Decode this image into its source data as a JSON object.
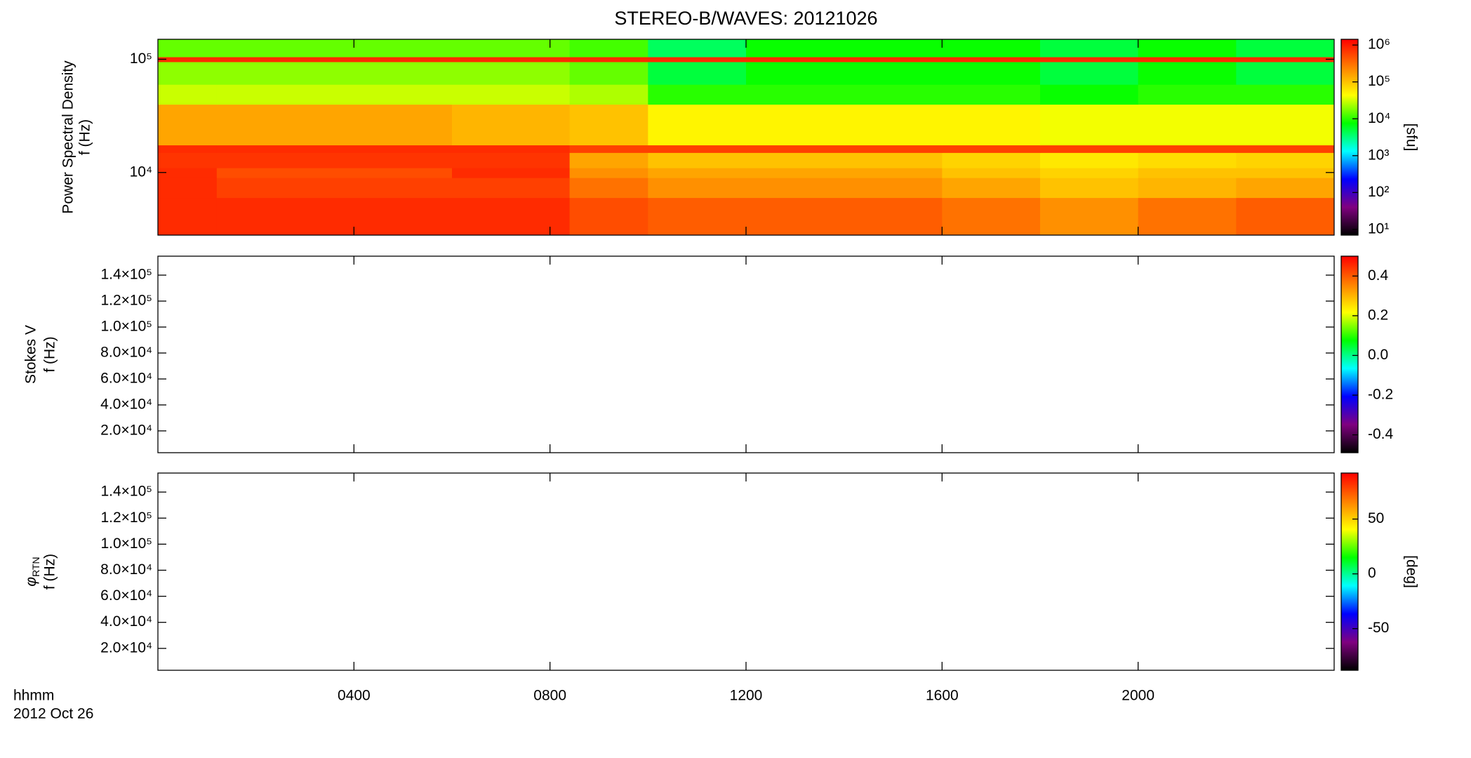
{
  "chart_data": [
    {
      "type": "heatmap",
      "title": "STEREO-B/WAVES: 20121026",
      "ylabel": [
        "Power Spectral Density",
        "f (Hz)"
      ],
      "log_y": true,
      "ylim": [
        2800,
        150000
      ],
      "yticks": [
        {
          "value": 10000,
          "label": "10⁴"
        },
        {
          "value": 100000,
          "label": "10⁵"
        }
      ],
      "x_edges": [
        0,
        1.2,
        6,
        8.4,
        10,
        12,
        14,
        16,
        18,
        20,
        22,
        24
      ],
      "y_edges": [
        2800,
        6000,
        9000,
        11000,
        15000,
        17500,
        40000,
        60000,
        95000,
        105000,
        150000
      ],
      "z": [
        [
          800000,
          800000,
          800000,
          500000,
          400000,
          400000,
          400000,
          300000,
          200000,
          300000,
          400000
        ],
        [
          800000,
          600000,
          600000,
          300000,
          200000,
          200000,
          200000,
          150000,
          100000,
          120000,
          150000
        ],
        [
          800000,
          500000,
          800000,
          200000,
          150000,
          150000,
          150000,
          100000,
          80000,
          100000,
          100000
        ],
        [
          700000,
          700000,
          700000,
          150000,
          100000,
          100000,
          100000,
          80000,
          60000,
          70000,
          80000
        ],
        [
          800000,
          800000,
          800000,
          600000,
          600000,
          600000,
          600000,
          600000,
          600000,
          600000,
          600000
        ],
        [
          150000,
          150000,
          120000,
          100000,
          50000,
          50000,
          50000,
          50000,
          40000,
          40000,
          40000
        ],
        [
          30000,
          30000,
          30000,
          25000,
          10000,
          10000,
          10000,
          10000,
          8000,
          10000,
          10000
        ],
        [
          20000,
          20000,
          20000,
          15000,
          5000,
          8000,
          8000,
          8000,
          5000,
          8000,
          5000
        ],
        [
          800000,
          800000,
          800000,
          800000,
          800000,
          800000,
          800000,
          800000,
          800000,
          800000,
          800000
        ],
        [
          15000,
          15000,
          15000,
          12000,
          4000,
          8000,
          8000,
          8000,
          5000,
          8000,
          5000
        ]
      ],
      "colorbar": {
        "log": true,
        "zlim": [
          7,
          1430000
        ],
        "label": "[sfu]",
        "ticks": [
          {
            "value": 10,
            "label": "10¹"
          },
          {
            "value": 100,
            "label": "10²"
          },
          {
            "value": 1000,
            "label": "10³"
          },
          {
            "value": 10000,
            "label": "10⁴"
          },
          {
            "value": 100000,
            "label": "10⁵"
          },
          {
            "value": 1000000,
            "label": "10⁶"
          }
        ]
      },
      "colorscale": [
        "#000000",
        "#800080",
        "#0000ff",
        "#00ffff",
        "#00ff00",
        "#ffff00",
        "#ff8000",
        "#ff0000"
      ]
    },
    {
      "type": "heatmap",
      "ylabel": [
        "Stokes V",
        "f (Hz)"
      ],
      "log_y": false,
      "ylim": [
        3200,
        154600
      ],
      "yticks": [
        {
          "value": 20000,
          "label": "2.0×10⁴"
        },
        {
          "value": 40000,
          "label": "4.0×10⁴"
        },
        {
          "value": 60000,
          "label": "6.0×10⁴"
        },
        {
          "value": 80000,
          "label": "8.0×10⁴"
        },
        {
          "value": 100000,
          "label": "1.0×10⁵"
        },
        {
          "value": 120000,
          "label": "1.2×10⁵"
        },
        {
          "value": 140000,
          "label": "1.4×10⁵"
        }
      ],
      "colorbar": {
        "log": false,
        "zlim": [
          -0.49,
          0.5
        ],
        "ticks": [
          {
            "value": -0.4,
            "label": "-0.4"
          },
          {
            "value": -0.2,
            "label": "-0.2"
          },
          {
            "value": 0,
            "label": "0.0"
          },
          0.2,
          0.4
        ]
      },
      "colorscale": [
        "#000000",
        "#800080",
        "#0000ff",
        "#00ffff",
        "#00ff00",
        "#ffff00",
        "#ff8000",
        "#ff0000"
      ]
    },
    {
      "type": "heatmap",
      "ylabel": [
        {
          "symbol": "φ",
          "subscript": "RTN"
        },
        "f (Hz)"
      ],
      "log_y": false,
      "ylim": [
        3200,
        154600
      ],
      "yticks": [
        {
          "value": 20000,
          "label": "2.0×10⁴"
        },
        {
          "value": 40000,
          "label": "4.0×10⁴"
        },
        {
          "value": 60000,
          "label": "6.0×10⁴"
        },
        {
          "value": 80000,
          "label": "8.0×10⁴"
        },
        {
          "value": 100000,
          "label": "1.0×10⁵"
        },
        {
          "value": 120000,
          "label": "1.2×10⁵"
        },
        {
          "value": 140000,
          "label": "1.4×10⁵"
        }
      ],
      "colorbar": {
        "log": false,
        "zlim": [
          -88,
          92
        ],
        "label": "[deg]",
        "ticks": [
          -50,
          0,
          50
        ]
      },
      "colorscale": [
        "#000000",
        "#800080",
        "#0000ff",
        "#00ffff",
        "#00ff00",
        "#ffff00",
        "#ff8000",
        "#ff0000"
      ],
      "xlim": [
        0,
        24
      ],
      "xticks": [
        {
          "value": 4,
          "label": "0400"
        },
        {
          "value": 8,
          "label": "0800"
        },
        {
          "value": 12,
          "label": "1200"
        },
        {
          "value": 16,
          "label": "1600"
        },
        {
          "value": 20,
          "label": "2000"
        }
      ],
      "xlabel": [
        "hhmm",
        "2012 Oct 26"
      ]
    }
  ]
}
